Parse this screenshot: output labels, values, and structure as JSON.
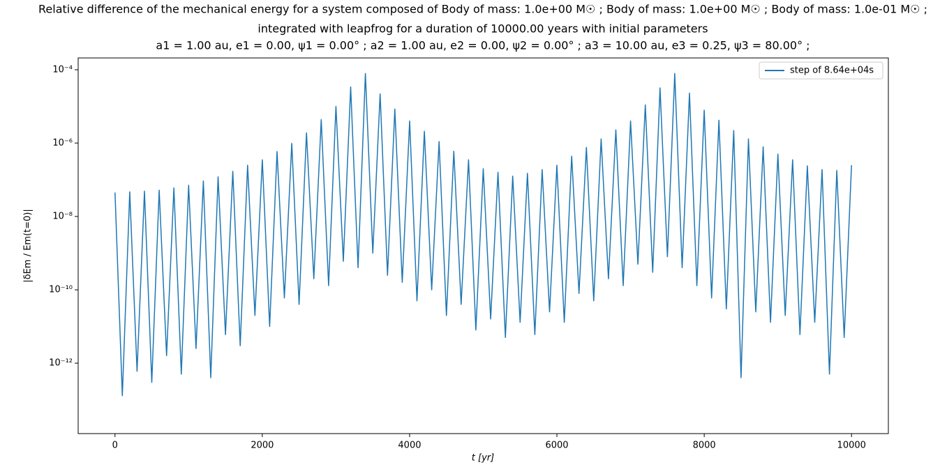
{
  "chart_data": {
    "type": "line",
    "title": [
      "Relative difference of the mechanical energy for a system composed of Body of mass: 1.0e+00 M☉ ; Body of mass: 1.0e+00 M☉ ; Body of mass: 1.0e-01 M☉ ;",
      "integrated with leapfrog for a duration of 10000.00 years with initial parameters",
      "a1 = 1.00 au, e1 = 0.00, ψ1 = 0.00° ; a2 = 1.00 au, e2 = 0.00, ψ2 = 0.00° ; a3 = 10.00 au, e3 = 0.25, ψ3 = 80.00° ;"
    ],
    "xlabel": "t [yr]",
    "ylabel": "|δEm / Em(t=0)|",
    "ylog": true,
    "legend": "upper right",
    "xlim": [
      -500,
      10500
    ],
    "xticks": [
      0,
      2000,
      4000,
      6000,
      8000,
      10000
    ],
    "ylim": [
      1.2e-14,
      0.00021
    ],
    "yticks": [
      {
        "value": 1e-12,
        "label": "10⁻¹²"
      },
      {
        "value": 1e-10,
        "label": "10⁻¹⁰"
      },
      {
        "value": 1e-08,
        "label": "10⁻⁸"
      },
      {
        "value": 1e-06,
        "label": "10⁻⁶"
      },
      {
        "value": 0.0001,
        "label": "10⁻⁴"
      }
    ],
    "x": [
      0,
      100,
      200,
      300,
      400,
      500,
      600,
      700,
      800,
      900,
      1000,
      1100,
      1200,
      1300,
      1400,
      1500,
      1600,
      1700,
      1800,
      1900,
      2000,
      2100,
      2200,
      2300,
      2400,
      2500,
      2600,
      2700,
      2800,
      2900,
      3000,
      3100,
      3200,
      3300,
      3400,
      3500,
      3600,
      3700,
      3800,
      3900,
      4000,
      4100,
      4200,
      4300,
      4400,
      4500,
      4600,
      4700,
      4800,
      4900,
      5000,
      5100,
      5200,
      5300,
      5400,
      5500,
      5600,
      5700,
      5800,
      5900,
      6000,
      6100,
      6200,
      6300,
      6400,
      6500,
      6600,
      6700,
      6800,
      6900,
      7000,
      7100,
      7200,
      7300,
      7400,
      7500,
      7600,
      7700,
      7800,
      7900,
      8000,
      8100,
      8200,
      8300,
      8400,
      8500,
      8600,
      8700,
      8800,
      8900,
      9000,
      9100,
      9200,
      9300,
      9400,
      9500,
      9600,
      9700,
      9800,
      9900,
      10000
    ],
    "series": [
      {
        "name": "step of 8.64e+04s",
        "color": "#1f77b4",
        "values": [
          4.5e-08,
          1.3e-13,
          4.7e-08,
          6e-13,
          4.9e-08,
          3e-13,
          5.2e-08,
          1.6e-12,
          6e-08,
          5e-13,
          7.1e-08,
          2.5e-12,
          9.3e-08,
          4e-13,
          1.2e-07,
          6e-12,
          1.7e-07,
          3e-12,
          2.5e-07,
          2e-11,
          3.5e-07,
          1e-11,
          5.9e-07,
          6e-11,
          9.8e-07,
          4e-11,
          1.9e-06,
          2e-10,
          4.4e-06,
          1.3e-10,
          1e-05,
          6e-10,
          3.4e-05,
          4e-10,
          7.9e-05,
          1e-09,
          2.2e-05,
          2.5e-10,
          8.5e-06,
          1.6e-10,
          4e-06,
          5e-11,
          2.1e-06,
          1e-10,
          1.1e-06,
          2e-11,
          6e-07,
          4e-11,
          3.5e-07,
          8e-12,
          2e-07,
          1.6e-11,
          1.6e-07,
          5e-12,
          1.26e-07,
          1.3e-11,
          1.5e-07,
          6e-12,
          1.9e-07,
          2.5e-11,
          2.5e-07,
          1.3e-11,
          4.4e-07,
          8e-11,
          7.6e-07,
          5e-11,
          1.3e-06,
          2e-10,
          2.3e-06,
          1.3e-10,
          4e-06,
          5e-10,
          1.1e-05,
          3e-10,
          3.2e-05,
          8e-10,
          7.9e-05,
          4e-10,
          2.3e-05,
          1.3e-10,
          7.9e-06,
          6e-11,
          4.2e-06,
          3e-11,
          2.2e-06,
          4e-13,
          1.3e-06,
          2.5e-11,
          7.9e-07,
          1.3e-11,
          5e-07,
          2e-11,
          3.5e-07,
          6e-12,
          2.4e-07,
          1.3e-11,
          1.9e-07,
          5e-13,
          1.8e-07,
          5e-12,
          2.5e-07
        ]
      }
    ]
  }
}
